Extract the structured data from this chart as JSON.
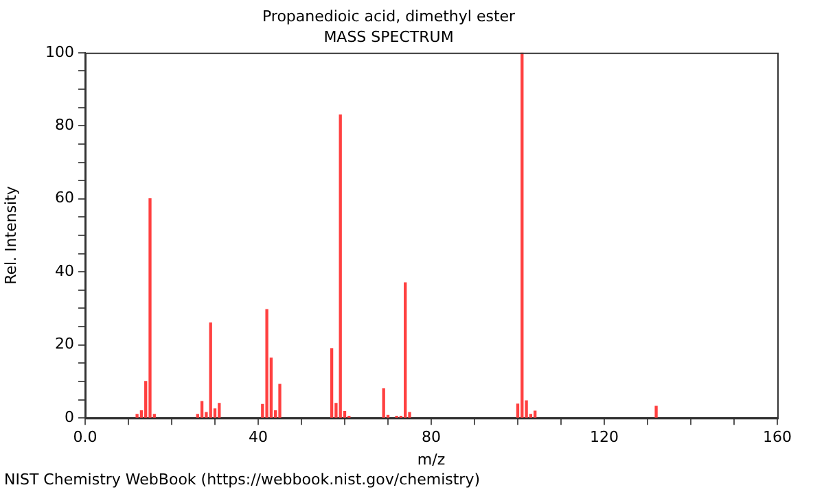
{
  "chart_data": {
    "type": "bar",
    "title": "Propanedioic acid, dimethyl ester",
    "subtitle": "MASS SPECTRUM",
    "xlabel": "m/z",
    "ylabel": "Rel. Intensity",
    "x": [
      12,
      13,
      14,
      15,
      16,
      26,
      27,
      28,
      29,
      30,
      31,
      41,
      42,
      43,
      44,
      45,
      57,
      58,
      59,
      60,
      61,
      69,
      70,
      72,
      73,
      74,
      75,
      100,
      101,
      102,
      103,
      104,
      132
    ],
    "values": [
      1,
      2,
      10,
      60,
      1,
      1,
      4.5,
      1.5,
      26,
      2.5,
      4,
      3.7,
      29.7,
      16.4,
      2,
      9.2,
      19,
      4,
      83,
      1.8,
      0.5,
      8,
      0.7,
      0.5,
      0.5,
      37,
      1.5,
      3.8,
      100,
      4.7,
      1,
      1.9,
      3.2
    ],
    "color": "#ff4040",
    "xlim": [
      0,
      160
    ],
    "xticks": [
      {
        "value": 0,
        "label": "0.0"
      },
      {
        "value": 10,
        "label": null
      },
      {
        "value": 20,
        "label": null
      },
      {
        "value": 30,
        "label": null
      },
      {
        "value": 40,
        "label": "40"
      },
      {
        "value": 50,
        "label": null
      },
      {
        "value": 60,
        "label": null
      },
      {
        "value": 70,
        "label": null
      },
      {
        "value": 80,
        "label": "80"
      },
      {
        "value": 90,
        "label": null
      },
      {
        "value": 100,
        "label": null
      },
      {
        "value": 110,
        "label": null
      },
      {
        "value": 120,
        "label": "120"
      },
      {
        "value": 130,
        "label": null
      },
      {
        "value": 140,
        "label": null
      },
      {
        "value": 150,
        "label": null
      },
      {
        "value": 160,
        "label": "160"
      }
    ],
    "ylim": [
      0,
      100
    ],
    "yticks": [
      0,
      {
        "value": 5,
        "label": null
      },
      {
        "value": 10,
        "label": null
      },
      {
        "value": 15,
        "label": null
      },
      20,
      {
        "value": 25,
        "label": null
      },
      {
        "value": 30,
        "label": null
      },
      {
        "value": 35,
        "label": null
      },
      40,
      {
        "value": 45,
        "label": null
      },
      {
        "value": 50,
        "label": null
      },
      {
        "value": 55,
        "label": null
      },
      60,
      {
        "value": 65,
        "label": null
      },
      {
        "value": 70,
        "label": null
      },
      {
        "value": 75,
        "label": null
      },
      80,
      {
        "value": 85,
        "label": null
      },
      {
        "value": 90,
        "label": null
      },
      {
        "value": 95,
        "label": null
      },
      100
    ],
    "grid": false,
    "annotations": [
      "NIST Chemistry WebBook (https://webbook.nist.gov/chemistry)"
    ]
  }
}
